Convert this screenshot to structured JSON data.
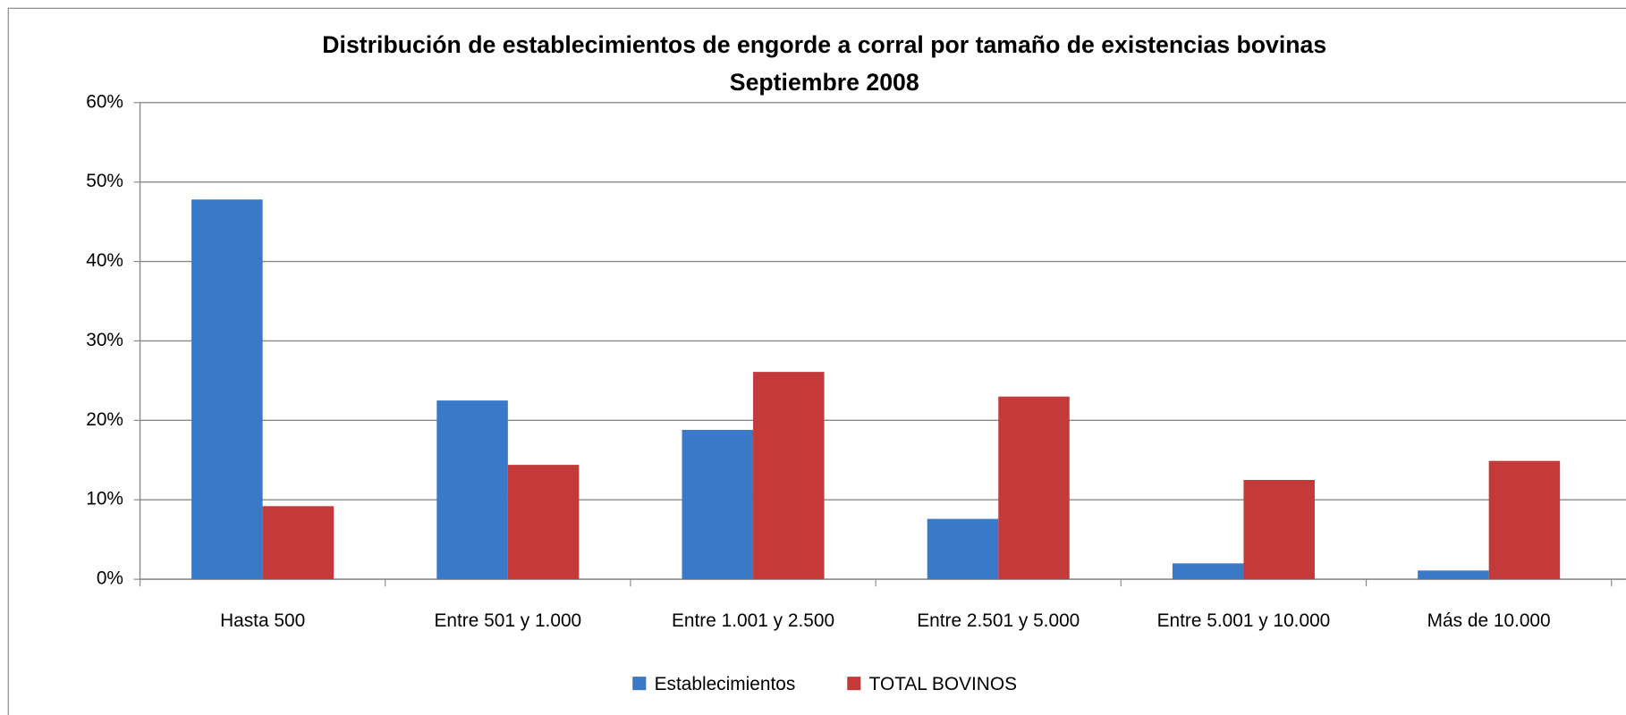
{
  "chart_data": {
    "type": "bar",
    "title": "Distribución de establecimientos de engorde a corral por tamaño de existencias bovinas",
    "subtitle": "Septiembre 2008",
    "categories": [
      "Hasta 500",
      "Entre 501 y 1.000",
      "Entre 1.001 y 2.500",
      "Entre 2.501 y 5.000",
      "Entre 5.001 y 10.000",
      "Más de 10.000"
    ],
    "series": [
      {
        "name": "Establecimientos",
        "color": "#3a78c8",
        "values": [
          47.8,
          22.5,
          18.8,
          7.6,
          2.0,
          1.1
        ]
      },
      {
        "name": "TOTAL BOVINOS",
        "color": "#c43a3a",
        "values": [
          9.2,
          14.4,
          26.1,
          23.0,
          12.5,
          14.9
        ]
      }
    ],
    "ylim": [
      0,
      60
    ],
    "yticks": [
      {
        "value": 0,
        "label": "0%"
      },
      {
        "value": 10,
        "label": "10%"
      },
      {
        "value": 20,
        "label": "20%"
      },
      {
        "value": 30,
        "label": "30%"
      },
      {
        "value": 40,
        "label": "40%"
      },
      {
        "value": 50,
        "label": "50%"
      },
      {
        "value": 60,
        "label": "60%"
      }
    ],
    "grid": true,
    "legend": "bottom"
  }
}
